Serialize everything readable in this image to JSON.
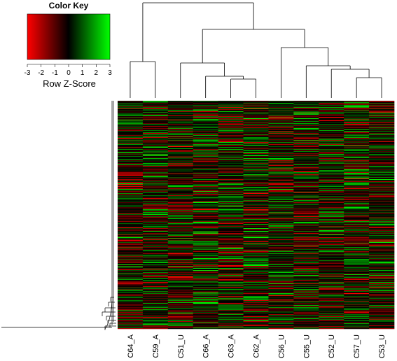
{
  "chart_data": {
    "type": "heatmap",
    "title": "",
    "columns": [
      "C64_A",
      "C59_A",
      "C51_U",
      "C66_A",
      "C63_A",
      "C62_A",
      "C56_U",
      "C55_U",
      "C52_U",
      "C57_U",
      "C53_U"
    ],
    "color_key": {
      "title": "Color Key",
      "label": "Row Z-Score",
      "ticks": [
        "-3",
        "-2",
        "-1",
        "0",
        "1",
        "2",
        "3"
      ],
      "range": [
        -3,
        3
      ],
      "low_color": "#ff0000",
      "mid_color": "#000000",
      "high_color": "#00ff00"
    },
    "column_dendrogram": "hierarchical clustering of samples: ((C64_A, C59_A), ((C51_U, (C66_A, (C63_A, C62_A))), (C56_U, (C55_U, (C52_U, (C57_U, C53_U))))))",
    "row_dendrogram": true,
    "rows": "many gene rows (row-scaled Z-scores)"
  }
}
